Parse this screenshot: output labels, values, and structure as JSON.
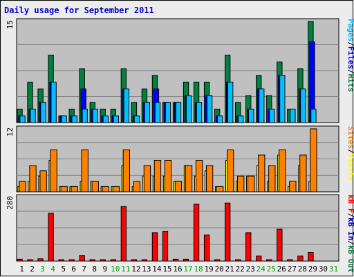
{
  "chart_data": {
    "type": "bar",
    "title": "Daily usage for September 2011",
    "colors": {
      "background": "#ffffff",
      "plot_bg": "#c0c0c0",
      "frame": "#ececec",
      "border": "#000000",
      "title": "#0000c0",
      "hits": "#008040",
      "files": "#0000ff",
      "pages": "#00c0ff",
      "visits": "#ffff00",
      "sites": "#ff8000",
      "kb_in": "#0000c0",
      "kb_out": "#008040",
      "kb_f": "#ff0000",
      "weekend_label": "#00a000"
    },
    "categories": [
      "1",
      "2",
      "3",
      "4",
      "5",
      "6",
      "7",
      "8",
      "9",
      "10",
      "11",
      "12",
      "13",
      "14",
      "15",
      "16",
      "17",
      "18",
      "19",
      "20",
      "21",
      "22",
      "23",
      "24",
      "25",
      "26",
      "27",
      "28",
      "29",
      "30",
      "31"
    ],
    "weekend_days": [
      3,
      4,
      10,
      11,
      17,
      18,
      24,
      25,
      31
    ],
    "panels": [
      {
        "name": "hits-files-pages",
        "ymax_label": "15",
        "ymax": 15,
        "legend": [
          {
            "text": "Pages",
            "color_key": "pages"
          },
          {
            "text": "/",
            "color_key": "border"
          },
          {
            "text": "Files",
            "color_key": "files"
          },
          {
            "text": "/",
            "color_key": "border"
          },
          {
            "text": "Hits",
            "color_key": "hits"
          }
        ],
        "series": [
          {
            "name": "Hits",
            "color_key": "hits",
            "values": [
              2,
              6,
              5,
              10,
              1,
              2,
              8,
              3,
              2,
              2,
              8,
              3,
              5,
              7,
              3,
              3,
              6,
              6,
              6,
              2,
              10,
              3,
              4,
              7,
              4,
              9,
              2,
              8,
              15,
              0,
              0
            ]
          },
          {
            "name": "Files",
            "color_key": "files",
            "values": [
              1,
              2,
              3,
              6,
              1,
              1,
              5,
              2,
              1,
              1,
              5,
              1,
              3,
              5,
              3,
              3,
              4,
              3,
              4,
              1,
              6,
              1,
              2,
              5,
              2,
              7,
              0,
              5,
              12,
              0,
              0
            ]
          },
          {
            "name": "Pages",
            "color_key": "pages",
            "values": [
              1,
              2,
              3,
              6,
              1,
              1,
              2,
              2,
              1,
              1,
              5,
              1,
              3,
              3,
              3,
              3,
              4,
              3,
              4,
              1,
              6,
              1,
              2,
              5,
              2,
              7,
              2,
              5,
              2,
              0,
              0
            ]
          }
        ]
      },
      {
        "name": "visits-sites",
        "ymax_label": "12",
        "ymax": 12,
        "legend": [
          {
            "text": "Sites",
            "color_key": "sites"
          },
          {
            "text": "/",
            "color_key": "border"
          },
          {
            "text": "Visits",
            "color_key": "visits"
          }
        ],
        "series": [
          {
            "name": "Visits",
            "color_key": "visits",
            "values": [
              1,
              2,
              3,
              6,
              1,
              1,
              2,
              2,
              1,
              1,
              5,
              1,
              3,
              3,
              3,
              2,
              5,
              3,
              4,
              1,
              6,
              2,
              3,
              5,
              2,
              7,
              1,
              5,
              2,
              0,
              0
            ]
          },
          {
            "name": "Sites",
            "color_key": "sites",
            "values": [
              2,
              5,
              4,
              8,
              1,
              1,
              8,
              2,
              1,
              1,
              8,
              2,
              5,
              6,
              6,
              2,
              5,
              6,
              5,
              1,
              8,
              3,
              3,
              7,
              5,
              8,
              2,
              7,
              12,
              0,
              0
            ]
          }
        ]
      },
      {
        "name": "kbytes",
        "ymax_label": "280",
        "ymax": 280,
        "legend": [
          {
            "text": "kB F",
            "color_key": "kb_f"
          },
          {
            "text": "/",
            "color_key": "border"
          },
          {
            "text": "kB In",
            "color_key": "kb_in"
          },
          {
            "text": "/",
            "color_key": "border"
          },
          {
            "text": "kB Out",
            "color_key": "kb_out"
          }
        ],
        "series": [
          {
            "name": "kB F",
            "color_key": "kb_f",
            "values": [
              8,
              3,
              10,
              210,
              2,
              2,
              25,
              3,
              2,
              2,
              240,
              2,
              3,
              125,
              130,
              8,
              8,
              250,
              115,
              2,
              255,
              3,
              125,
              22,
              4,
              140,
              4,
              22,
              38,
              0,
              0
            ]
          },
          {
            "name": "kB In",
            "color_key": "kb_in",
            "values": [
              0,
              0,
              0,
              0,
              0,
              0,
              0,
              0,
              0,
              0,
              0,
              0,
              0,
              0,
              0,
              0,
              0,
              0,
              0,
              0,
              0,
              0,
              0,
              0,
              0,
              0,
              0,
              0,
              0,
              0,
              0
            ]
          },
          {
            "name": "kB Out",
            "color_key": "kb_out",
            "values": [
              0,
              0,
              0,
              0,
              0,
              0,
              0,
              0,
              0,
              0,
              0,
              0,
              0,
              0,
              0,
              0,
              0,
              0,
              0,
              0,
              0,
              0,
              0,
              0,
              0,
              0,
              0,
              0,
              0,
              0,
              0
            ]
          }
        ]
      }
    ]
  }
}
